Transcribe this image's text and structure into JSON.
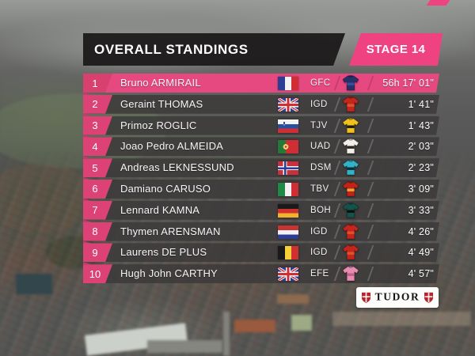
{
  "header": {
    "title": "OVERALL STANDINGS",
    "stage": "STAGE 14"
  },
  "sponsor": {
    "label": "TUDOR",
    "shield_color": "#b5242a"
  },
  "colors": {
    "accent_pink": "#e5497f",
    "stage_pink": "#ee4380",
    "header_dark": "#1e1b1c",
    "row_gray": "#3c3a3a"
  },
  "standings": [
    {
      "rank": "1",
      "name": "Bruno ARMIRAIL",
      "flag": "fr",
      "team": "GFC",
      "jersey_body": "#273069",
      "jersey_accent": "#3d4d9e",
      "time": "56h 17' 01\"",
      "leader": true
    },
    {
      "rank": "2",
      "name": "Geraint THOMAS",
      "flag": "gb",
      "team": "IGD",
      "jersey_body": "#c4261d",
      "jersey_accent": "#e0512b",
      "time": "1' 41\"",
      "leader": false
    },
    {
      "rank": "3",
      "name": "Primoz ROGLIC",
      "flag": "si",
      "team": "TJV",
      "jersey_body": "#f0c01c",
      "jersey_accent": "#1a1a1a",
      "time": "1' 43\"",
      "leader": false
    },
    {
      "rank": "4",
      "name": "Joao Pedro ALMEIDA",
      "flag": "pt",
      "team": "UAD",
      "jersey_body": "#f2efe8",
      "jersey_accent": "#262626",
      "time": "2' 03\"",
      "leader": false
    },
    {
      "rank": "5",
      "name": "Andreas LEKNESSUND",
      "flag": "no",
      "team": "DSM",
      "jersey_body": "#31b2c6",
      "jersey_accent": "#0e2a36",
      "time": "2' 23\"",
      "leader": false
    },
    {
      "rank": "6",
      "name": "Damiano CARUSO",
      "flag": "it",
      "team": "TBV",
      "jersey_body": "#c02419",
      "jersey_accent": "#f0a23c",
      "time": "3' 09\"",
      "leader": false
    },
    {
      "rank": "7",
      "name": "Lennard KAMNA",
      "flag": "de",
      "team": "BOH",
      "jersey_body": "#155248",
      "jersey_accent": "#0f0f0f",
      "time": "3' 33\"",
      "leader": false
    },
    {
      "rank": "8",
      "name": "Thymen ARENSMAN",
      "flag": "nl",
      "team": "IGD",
      "jersey_body": "#c4261d",
      "jersey_accent": "#e0512b",
      "time": "4' 26\"",
      "leader": false
    },
    {
      "rank": "9",
      "name": "Laurens DE PLUS",
      "flag": "be",
      "team": "IGD",
      "jersey_body": "#c4261d",
      "jersey_accent": "#e0512b",
      "time": "4' 49\"",
      "leader": false
    },
    {
      "rank": "10",
      "name": "Hugh John CARTHY",
      "flag": "gb",
      "team": "EFE",
      "jersey_body": "#e78bb1",
      "jersey_accent": "#c25e88",
      "time": "4' 57\"",
      "leader": false
    }
  ]
}
